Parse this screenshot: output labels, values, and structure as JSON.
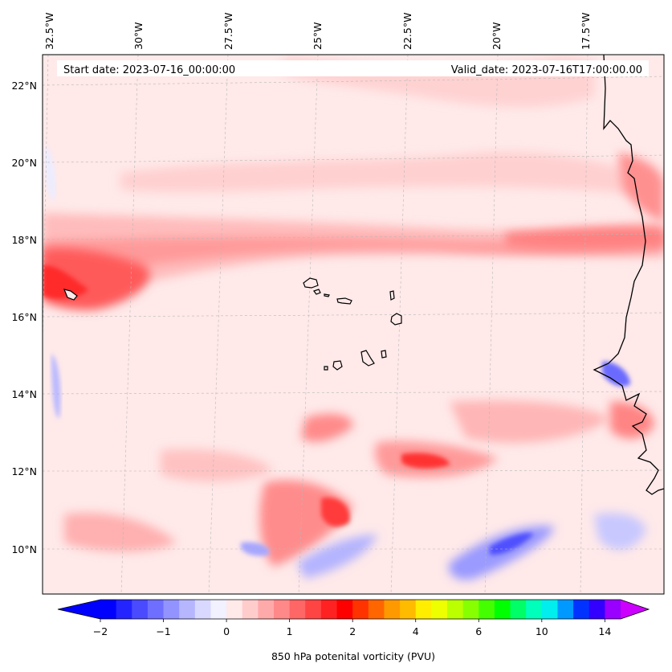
{
  "header": {
    "start_date": "Start date: 2023-07-16_00:00:00",
    "valid_date": "Valid_date: 2023-07-16T17:00:00.00"
  },
  "map": {
    "region": "Eastern tropical North Atlantic / Cabo Verde / West African coast",
    "top_longitudes": [
      {
        "value": -32.5,
        "label": "32.5°W"
      },
      {
        "value": -30.0,
        "label": "30°W"
      },
      {
        "value": -27.5,
        "label": "27.5°W"
      },
      {
        "value": -25.0,
        "label": "25°W"
      },
      {
        "value": -22.5,
        "label": "22.5°W"
      },
      {
        "value": -20.0,
        "label": "20°W"
      },
      {
        "value": -17.5,
        "label": "17.5°W"
      }
    ],
    "left_latitudes": [
      {
        "value": 22,
        "label": "22°N"
      },
      {
        "value": 20,
        "label": "20°N"
      },
      {
        "value": 18,
        "label": "18°N"
      },
      {
        "value": 16,
        "label": "16°N"
      },
      {
        "value": 14,
        "label": "14°N"
      },
      {
        "value": 12,
        "label": "12°N"
      },
      {
        "value": 10,
        "label": "10°N"
      }
    ],
    "colors": {
      "background_field": "#ffe9e9",
      "coastline": "#000000",
      "gridline": "#b0b0b0"
    }
  },
  "colorbar": {
    "label": "850 hPa potenital vorticity (PVU)",
    "ticks": [
      "−2",
      "−1",
      "0",
      "1",
      "2",
      "4",
      "6",
      "10",
      "14"
    ],
    "colors": [
      "#0000ff",
      "#2424ff",
      "#4a4aff",
      "#6f6fff",
      "#9393ff",
      "#b6b6ff",
      "#d9d9ff",
      "#f1f1ff",
      "#ffe9e9",
      "#ffcccc",
      "#ffaaaa",
      "#ff8888",
      "#ff6666",
      "#ff4444",
      "#ff2222",
      "#ff0000",
      "#ff3300",
      "#ff6600",
      "#ff9900",
      "#ffbb00",
      "#ffee00",
      "#eeff00",
      "#bbff00",
      "#88ff00",
      "#44ff00",
      "#00ff00",
      "#00ff66",
      "#00ffbb",
      "#00eeee",
      "#0099ff",
      "#0033ff",
      "#3300ff",
      "#9900ff"
    ],
    "under_color": "#0000ff",
    "over_color": "#cc00ff"
  }
}
